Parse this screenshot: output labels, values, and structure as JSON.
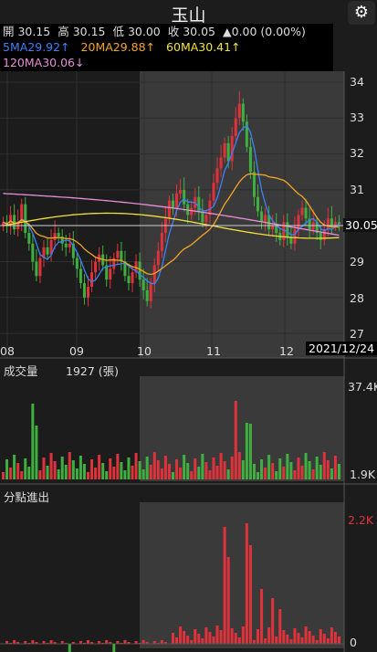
{
  "header": {
    "title": "玉山",
    "settings_icon": "gear-icon"
  },
  "quote": {
    "open": "開 30.15",
    "high": "高 30.15",
    "low": "低 30.00",
    "close": "收 30.05",
    "change": "▲0.00 (0.00%)"
  },
  "ma": {
    "ma5": "5MA29.92↑",
    "ma20": "20MA29.88↑",
    "ma60": "60MA30.41↑",
    "ma120": "120MA30.06↓"
  },
  "colors": {
    "up": "#e0323a",
    "down": "#3fb03f",
    "ma5": "#3b82f6",
    "ma20": "#f5a623",
    "ma60": "#f2e33c",
    "ma120": "#e88fd9",
    "highlight": "#3a3a3a"
  },
  "price_axis": {
    "ticks": [
      "34",
      "33",
      "32",
      "31",
      "30",
      "29",
      "28",
      "27"
    ],
    "current": "30.05"
  },
  "date_axis": {
    "labels": [
      "08",
      "09",
      "10",
      "11",
      "12"
    ],
    "cursor_date": "2021/12/24"
  },
  "volume": {
    "title": "成交量",
    "value": "1927 (張)",
    "max_label": "37.4K",
    "min_label": "1.9K"
  },
  "flow": {
    "title": "分點進出",
    "max_label": "2.2K",
    "zero_label": "0"
  },
  "chart_data": {
    "type": "candlestick",
    "ylim": [
      27,
      34
    ],
    "x_labels": [
      "08",
      "09",
      "10",
      "11",
      "12"
    ],
    "last_close": 30.05,
    "volume_range": [
      "1.9K",
      "37.4K"
    ],
    "flow_range": [
      "0",
      "2.2K"
    ]
  }
}
